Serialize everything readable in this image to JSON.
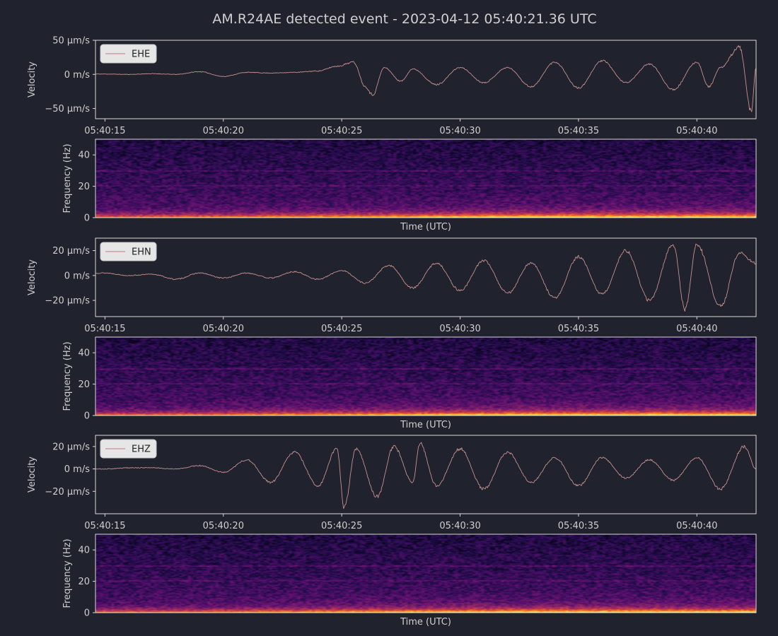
{
  "title": "AM.R24AE detected event - 2023-04-12 05:40:21.36 UTC",
  "colors": {
    "background": "#20232d",
    "trace": "#c98f8f",
    "text": "#cfcfcf",
    "frame": "#d8d8d8",
    "legend_bg": "#e6e6e6",
    "colormap": "inferno"
  },
  "chart_data": [
    {
      "type": "line",
      "channel": "EHE",
      "legend": "EHE",
      "legend_position": "upper-left",
      "ylabel": "Velocity",
      "yticks": [
        "50 µm/s",
        "0 m/s",
        "−50 µm/s"
      ],
      "ytick_values": [
        50,
        0,
        -50
      ],
      "ylim": [
        -65,
        50
      ],
      "xlim_seconds": [
        "05:40:14.6",
        "05:40:42.5"
      ],
      "xticks": [
        "05:40:15",
        "05:40:20",
        "05:40:25",
        "05:40:30",
        "05:40:35",
        "05:40:40"
      ],
      "series": [
        {
          "values": [
            [
              "05:40:15",
              0.5
            ],
            [
              "05:40:16",
              0
            ],
            [
              "05:40:17",
              1
            ],
            [
              "05:40:18",
              0
            ],
            [
              "05:40:19",
              4
            ],
            [
              "05:40:20",
              -3
            ],
            [
              "05:40:21",
              3
            ],
            [
              "05:40:22",
              2
            ],
            [
              "05:40:23",
              3
            ],
            [
              "05:40:24",
              5
            ],
            [
              "05:40:24.8",
              12
            ],
            [
              "05:40:25.5",
              18
            ],
            [
              "05:40:26",
              -18
            ],
            [
              "05:40:26.3",
              -30
            ],
            [
              "05:40:26.8",
              10
            ],
            [
              "05:40:27.5",
              -10
            ],
            [
              "05:40:28",
              8
            ],
            [
              "05:40:29",
              -15
            ],
            [
              "05:40:30",
              10
            ],
            [
              "05:40:31",
              -12
            ],
            [
              "05:40:32",
              10
            ],
            [
              "05:40:33",
              -18
            ],
            [
              "05:40:34",
              18
            ],
            [
              "05:40:35",
              -20
            ],
            [
              "05:40:36",
              20
            ],
            [
              "05:40:37",
              -12
            ],
            [
              "05:40:38",
              15
            ],
            [
              "05:40:39",
              -22
            ],
            [
              "05:40:40",
              18
            ],
            [
              "05:40:40.5",
              -18
            ],
            [
              "05:40:41",
              10
            ],
            [
              "05:40:41.8",
              40
            ],
            [
              "05:40:42.3",
              -55
            ],
            [
              "05:40:42.5",
              10
            ]
          ]
        }
      ]
    },
    {
      "type": "heatmap",
      "channel": "EHE",
      "xlabel": "Time (UTC)",
      "ylabel": "Frequency (Hz)",
      "ylim": [
        0,
        50
      ],
      "yticks": [
        "0",
        "20",
        "40"
      ],
      "ytick_values": [
        0,
        20,
        40
      ],
      "colormap": "inferno"
    },
    {
      "type": "line",
      "channel": "EHN",
      "legend": "EHN",
      "legend_position": "upper-left",
      "ylabel": "Velocity",
      "yticks": [
        "20 µm/s",
        "0 m/s",
        "−20 µm/s"
      ],
      "ytick_values": [
        20,
        0,
        -20
      ],
      "ylim": [
        -33,
        30
      ],
      "xlim_seconds": [
        "05:40:14.6",
        "05:40:42.5"
      ],
      "xticks": [
        "05:40:15",
        "05:40:20",
        "05:40:25",
        "05:40:30",
        "05:40:35",
        "05:40:40"
      ],
      "series": [
        {
          "values": [
            [
              "05:40:15",
              2
            ],
            [
              "05:40:16",
              0
            ],
            [
              "05:40:17",
              1
            ],
            [
              "05:40:18",
              -3
            ],
            [
              "05:40:19",
              2
            ],
            [
              "05:40:20",
              -2
            ],
            [
              "05:40:21",
              2
            ],
            [
              "05:40:22",
              -2
            ],
            [
              "05:40:23",
              3
            ],
            [
              "05:40:24",
              -3
            ],
            [
              "05:40:25",
              4
            ],
            [
              "05:40:26",
              -6
            ],
            [
              "05:40:27",
              8
            ],
            [
              "05:40:28",
              -10
            ],
            [
              "05:40:29",
              10
            ],
            [
              "05:40:30",
              -12
            ],
            [
              "05:40:31",
              12
            ],
            [
              "05:40:32",
              -14
            ],
            [
              "05:40:33",
              10
            ],
            [
              "05:40:34",
              -18
            ],
            [
              "05:40:35",
              15
            ],
            [
              "05:40:36",
              -15
            ],
            [
              "05:40:37",
              20
            ],
            [
              "05:40:38",
              -20
            ],
            [
              "05:40:39",
              25
            ],
            [
              "05:40:39.5",
              -27
            ],
            [
              "05:40:40",
              25
            ],
            [
              "05:40:41",
              -25
            ],
            [
              "05:40:41.8",
              18
            ],
            [
              "05:40:42.5",
              10
            ]
          ]
        }
      ]
    },
    {
      "type": "heatmap",
      "channel": "EHN",
      "xlabel": "Time (UTC)",
      "ylabel": "Frequency (Hz)",
      "ylim": [
        0,
        50
      ],
      "yticks": [
        "0",
        "20",
        "40"
      ],
      "ytick_values": [
        0,
        20,
        40
      ],
      "colormap": "inferno"
    },
    {
      "type": "line",
      "channel": "EHZ",
      "legend": "EHZ",
      "legend_position": "upper-left",
      "ylabel": "Velocity",
      "yticks": [
        "20 µm/s",
        "0 m/s",
        "−20 µm/s"
      ],
      "ytick_values": [
        20,
        0,
        -20
      ],
      "ylim": [
        -40,
        30
      ],
      "xlim_seconds": [
        "05:40:14.6",
        "05:40:42.5"
      ],
      "xticks": [
        "05:40:15",
        "05:40:20",
        "05:40:25",
        "05:40:30",
        "05:40:35",
        "05:40:40"
      ],
      "series": [
        {
          "values": [
            [
              "05:40:15",
              0
            ],
            [
              "05:40:16",
              1
            ],
            [
              "05:40:17",
              1
            ],
            [
              "05:40:18",
              0
            ],
            [
              "05:40:19",
              3
            ],
            [
              "05:40:20",
              -3
            ],
            [
              "05:40:21",
              8
            ],
            [
              "05:40:22",
              -12
            ],
            [
              "05:40:23",
              15
            ],
            [
              "05:40:24",
              -15
            ],
            [
              "05:40:24.8",
              18
            ],
            [
              "05:40:25.1",
              -35
            ],
            [
              "05:40:25.6",
              18
            ],
            [
              "05:40:26.5",
              -25
            ],
            [
              "05:40:27.2",
              20
            ],
            [
              "05:40:28",
              -12
            ],
            [
              "05:40:28.3",
              23
            ],
            [
              "05:40:29",
              -15
            ],
            [
              "05:40:30",
              18
            ],
            [
              "05:40:31",
              -18
            ],
            [
              "05:40:32",
              15
            ],
            [
              "05:40:33",
              -12
            ],
            [
              "05:40:34",
              10
            ],
            [
              "05:40:35",
              -15
            ],
            [
              "05:40:36",
              10
            ],
            [
              "05:40:37",
              -8
            ],
            [
              "05:40:38",
              8
            ],
            [
              "05:40:39",
              -10
            ],
            [
              "05:40:40",
              10
            ],
            [
              "05:40:41",
              -18
            ],
            [
              "05:40:42",
              20
            ],
            [
              "05:40:42.5",
              0
            ]
          ]
        }
      ]
    },
    {
      "type": "heatmap",
      "channel": "EHZ",
      "xlabel": "Time (UTC)",
      "ylabel": "Frequency (Hz)",
      "ylim": [
        0,
        50
      ],
      "yticks": [
        "0",
        "20",
        "40"
      ],
      "ytick_values": [
        0,
        20,
        40
      ],
      "colormap": "inferno"
    }
  ]
}
